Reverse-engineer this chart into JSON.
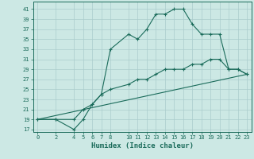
{
  "xlabel": "Humidex (Indice chaleur)",
  "bg_color": "#cce8e4",
  "grid_color": "#aacccc",
  "line_color": "#1a6b5a",
  "curve1_x": [
    0,
    2,
    4,
    5,
    6,
    7,
    8,
    10,
    11,
    12,
    13,
    14,
    15,
    16,
    17,
    18,
    19,
    20,
    21,
    22,
    23
  ],
  "curve1_y": [
    19,
    19,
    17,
    19,
    22,
    24,
    33,
    36,
    35,
    37,
    40,
    40,
    41,
    41,
    38,
    36,
    36,
    36,
    29,
    29,
    28
  ],
  "curve2_x": [
    0,
    2,
    4,
    5,
    6,
    7,
    8,
    10,
    11,
    12,
    13,
    14,
    15,
    16,
    17,
    18,
    19,
    20,
    21,
    22,
    23
  ],
  "curve2_y": [
    19,
    19,
    19,
    21,
    22,
    24,
    25,
    26,
    27,
    27,
    28,
    29,
    29,
    29,
    30,
    30,
    31,
    31,
    29,
    29,
    28
  ],
  "curve3_x": [
    0,
    23
  ],
  "curve3_y": [
    19,
    28
  ],
  "xlim": [
    -0.5,
    23.5
  ],
  "ylim": [
    16.5,
    42.5
  ],
  "xticks": [
    0,
    2,
    4,
    5,
    6,
    7,
    8,
    10,
    11,
    12,
    13,
    14,
    15,
    16,
    17,
    18,
    19,
    20,
    21,
    22,
    23
  ],
  "yticks": [
    17,
    19,
    21,
    23,
    25,
    27,
    29,
    31,
    33,
    35,
    37,
    39,
    41
  ],
  "tick_fontsize": 5.0,
  "xlabel_fontsize": 6.5
}
